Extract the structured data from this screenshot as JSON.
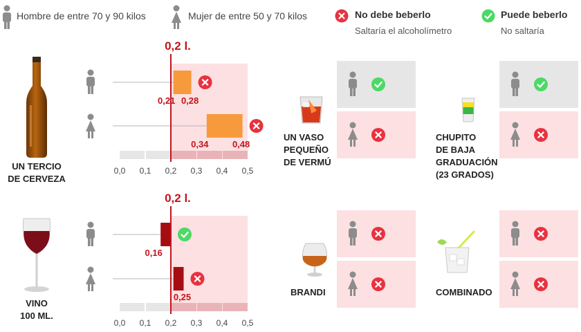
{
  "legend": {
    "man": "Hombre de entre 70 y 90 kilos",
    "woman": "Mujer de entre 50 y 70 kilos",
    "no_title": "No debe beberlo",
    "no_sub": "Saltaría el alcoholímetro",
    "yes_title": "Puede beberlo",
    "yes_sub": "No saltaría"
  },
  "colors": {
    "limit_line": "#c0151b",
    "over_zone": "#fde0e2",
    "beer_bar": "#f79a3c",
    "wine_bar": "#a50d12",
    "no_icon": "#e8323f",
    "yes_icon": "#4cd964",
    "person": "#8c8c8c"
  },
  "labels": {
    "beer": [
      "UN TERCIO",
      "DE CERVEZA"
    ],
    "wine": [
      "VINO",
      "100 ML."
    ]
  },
  "chart_data": [
    {
      "type": "bar",
      "orientation": "horizontal",
      "drink": "UN TERCIO DE CERVEZA",
      "limit_label": "0,2 l.",
      "limit": 0.2,
      "xlim": [
        0,
        0.5
      ],
      "ticks": [
        "0,0",
        "0,1",
        "0,2",
        "0,3",
        "0,4",
        "0,5"
      ],
      "categories": [
        "man",
        "woman"
      ],
      "ranges": [
        {
          "category": "man",
          "start": 0.21,
          "end": 0.28,
          "start_label": "0,21",
          "end_label": "0,28",
          "status": "no"
        },
        {
          "category": "woman",
          "start": 0.34,
          "end": 0.48,
          "start_label": "0,34",
          "end_label": "0,48",
          "status": "no"
        }
      ]
    },
    {
      "type": "bar",
      "orientation": "horizontal",
      "drink": "VINO 100 ML.",
      "limit_label": "0,2 l.",
      "limit": 0.2,
      "xlim": [
        0,
        0.5
      ],
      "ticks": [
        "0,0",
        "0,1",
        "0,2",
        "0,3",
        "0,4",
        "0,5"
      ],
      "categories": [
        "man",
        "woman"
      ],
      "ranges": [
        {
          "category": "man",
          "start": 0.16,
          "end": 0.2,
          "start_label": "0,16",
          "end_label": "",
          "status": "yes"
        },
        {
          "category": "woman",
          "start": 0.21,
          "end": 0.25,
          "start_label": "",
          "end_label": "0,25",
          "status": "no"
        }
      ]
    }
  ],
  "drinks": [
    {
      "id": "vermu",
      "label": [
        "UN VASO",
        "PEQUEÑO",
        "DE VERMÚ"
      ],
      "man": "yes",
      "woman": "no"
    },
    {
      "id": "chupito",
      "label": [
        "CHUPITO",
        "DE BAJA",
        "GRADUACIÓN",
        "(23 GRADOS)"
      ],
      "man": "yes",
      "woman": "no"
    },
    {
      "id": "brandi",
      "label": [
        "BRANDI"
      ],
      "man": "no",
      "woman": "no"
    },
    {
      "id": "combinado",
      "label": [
        "COMBINADO"
      ],
      "man": "no",
      "woman": "no"
    }
  ]
}
